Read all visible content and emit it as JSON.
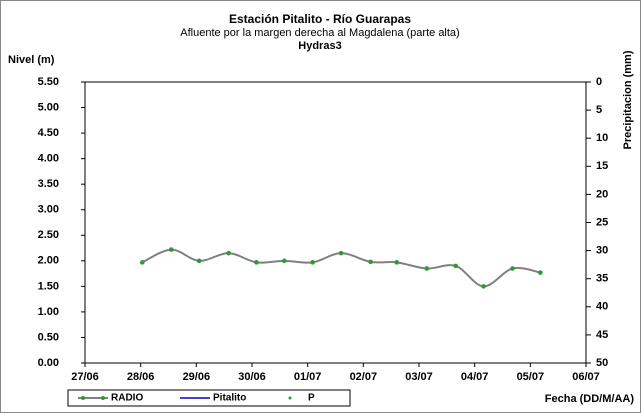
{
  "chart_data": {
    "type": "line",
    "title": "Estación Pitalito  - Río Guarapas",
    "subtitle": "Afluente por la margen derecha al Magdalena (parte alta)",
    "subtitle2": "Hydras3",
    "ylabel": "Nivel (m)",
    "y2label": "Precipitacion (mm)",
    "xlabel": "Fecha (DD/M/AA)",
    "x": [
      28.03,
      28.55,
      29.05,
      29.58,
      30.08,
      30.58,
      31.09,
      31.6,
      32.13,
      32.6,
      33.14,
      33.66,
      34.16,
      34.68,
      35.18
    ],
    "series": [
      {
        "name": "RADIO",
        "color": "#808080",
        "marker_color": "#339933",
        "values": [
          1.97,
          2.22,
          2.0,
          2.15,
          1.97,
          2.0,
          1.97,
          2.15,
          1.98,
          1.97,
          1.85,
          1.9,
          1.5,
          1.85,
          1.77
        ]
      },
      {
        "name": "Pitalito",
        "color": "#0000cc",
        "values": [
          null,
          null,
          null,
          null,
          null,
          null,
          null,
          null,
          null,
          null,
          null,
          null,
          null,
          null,
          null
        ]
      },
      {
        "name": "P",
        "color": "#339933",
        "axis": "y2",
        "values": [
          null,
          null,
          null,
          null,
          null,
          null,
          null,
          null,
          null,
          null,
          null,
          null,
          null,
          null,
          null
        ]
      }
    ],
    "xlim": [
      27,
      36
    ],
    "xticks": [
      {
        "value": 27,
        "label": "27/06"
      },
      {
        "value": 28,
        "label": "28/06"
      },
      {
        "value": 29,
        "label": "29/06"
      },
      {
        "value": 30,
        "label": "30/06"
      },
      {
        "value": 31,
        "label": "01/07"
      },
      {
        "value": 32,
        "label": "02/07"
      },
      {
        "value": 33,
        "label": "03/07"
      },
      {
        "value": 34,
        "label": "04/07"
      },
      {
        "value": 35,
        "label": "05/07"
      },
      {
        "value": 36,
        "label": "06/07"
      }
    ],
    "ylim": [
      0,
      5.5
    ],
    "yticks": [
      {
        "value": 0,
        "label": "0.00"
      },
      {
        "value": 0.5,
        "label": "0.50"
      },
      {
        "value": 1,
        "label": "1.00"
      },
      {
        "value": 1.5,
        "label": "1.50"
      },
      {
        "value": 2,
        "label": "2.00"
      },
      {
        "value": 2.5,
        "label": "2.50"
      },
      {
        "value": 3,
        "label": "3.00"
      },
      {
        "value": 3.5,
        "label": "3.50"
      },
      {
        "value": 4,
        "label": "4.00"
      },
      {
        "value": 4.5,
        "label": "4.50"
      },
      {
        "value": 5,
        "label": "5.00"
      },
      {
        "value": 5.5,
        "label": "5.50"
      }
    ],
    "y2lim": [
      0,
      50
    ],
    "y2_reversed": true,
    "y2ticks": [
      0,
      5,
      10,
      15,
      20,
      25,
      30,
      35,
      40,
      45,
      50
    ],
    "grid": false
  }
}
